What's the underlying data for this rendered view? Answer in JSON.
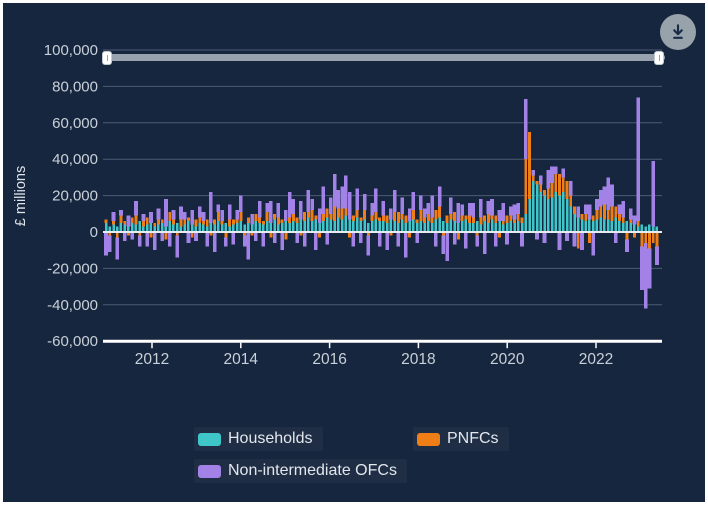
{
  "window": {
    "background": "#ffffff"
  },
  "panel": {
    "background": "#16263E"
  },
  "toolbar": {
    "download_button_color": "#98A2AB",
    "download_icon_color": "#1A2B47"
  },
  "range_slider": {
    "track_color": "#98A2AE",
    "handle_color": "#ffffff",
    "position": "full-range"
  },
  "y_axis": {
    "title": "£ millions",
    "tick_labels": [
      "100,000",
      "80,000",
      "60,000",
      "40,000",
      "20,000",
      "0",
      "-20,000",
      "-40,000",
      "-60,000"
    ],
    "tick_values": [
      100000,
      80000,
      60000,
      40000,
      20000,
      0,
      -20000,
      -40000,
      -60000
    ],
    "label_color": "#C9D0D9"
  },
  "x_axis": {
    "tick_labels": [
      "2012",
      "2014",
      "2016",
      "2018",
      "2020",
      "2022"
    ],
    "tick_years": [
      2012,
      2014,
      2016,
      2018,
      2020,
      2022
    ],
    "label_color": "#C9D0D9"
  },
  "legend": {
    "items": [
      {
        "label": "Households",
        "color": "#3EC6C9"
      },
      {
        "label": "PNFCs",
        "color": "#F07E16"
      },
      {
        "label": "Non-intermediate OFCs",
        "color": "#A382E8"
      }
    ]
  },
  "chart_data": {
    "type": "bar",
    "stacked": true,
    "frequency": "monthly",
    "x_range": [
      "2010-11",
      "2023-02"
    ],
    "ylabel": "£ millions",
    "ylim": [
      -60000,
      100000
    ],
    "grid": true,
    "legend_position": "bottom",
    "series": [
      {
        "name": "Households",
        "color": "#3EC6C9",
        "values": [
          5000,
          3000,
          4000,
          3000,
          5000,
          4000,
          3000,
          5000,
          4000,
          6000,
          3000,
          4000,
          5000,
          3000,
          4000,
          5000,
          3000,
          6000,
          4000,
          5000,
          3000,
          4000,
          6000,
          4000,
          3000,
          5000,
          4000,
          3000,
          5000,
          4000,
          6000,
          4000,
          5000,
          3000,
          4000,
          5000,
          6000,
          4000,
          5000,
          4000,
          6000,
          5000,
          4000,
          6000,
          5000,
          7000,
          4000,
          5000,
          6000,
          5000,
          6000,
          5000,
          7000,
          6000,
          8000,
          6000,
          7000,
          5000,
          6000,
          8000,
          7000,
          6000,
          8000,
          7000,
          9000,
          7000,
          6000,
          8000,
          6000,
          7000,
          5000,
          6000,
          7000,
          6000,
          6000,
          5000,
          7000,
          6000,
          5000,
          7000,
          5000,
          6000,
          7000,
          5000,
          6000,
          5000,
          6000,
          5000,
          7000,
          8000,
          6000,
          5000,
          7000,
          6000,
          5000,
          6000,
          7000,
          5000,
          5000,
          6000,
          4000,
          6000,
          5000,
          7000,
          5000,
          6000,
          4000,
          5000,
          6000,
          5000,
          6000,
          5000,
          10000,
          18000,
          28000,
          26000,
          22000,
          20000,
          18000,
          19000,
          22000,
          20000,
          22000,
          18000,
          14000,
          10000,
          8000,
          7000,
          6000,
          7000,
          6000,
          7000,
          8000,
          7000,
          7000,
          6000,
          8000,
          6000,
          5000,
          6000,
          5000,
          4000,
          3000,
          4000,
          3000,
          4000,
          3000,
          3000
        ]
      },
      {
        "name": "PNFCs",
        "color": "#F07E16",
        "values": [
          2000,
          -2000,
          2000,
          -3000,
          4000,
          2000,
          -2000,
          3000,
          5000,
          -2000,
          3000,
          4000,
          -3000,
          2000,
          3000,
          2000,
          -4000,
          5000,
          3000,
          -2000,
          4000,
          3000,
          2000,
          -3000,
          4000,
          3000,
          2000,
          4000,
          -2000,
          3000,
          5000,
          2000,
          -3000,
          4000,
          3000,
          2000,
          5000,
          -2000,
          3000,
          -2000,
          4000,
          3000,
          2000,
          5000,
          -3000,
          3000,
          4000,
          2000,
          -4000,
          3000,
          4000,
          3000,
          -2000,
          5000,
          3000,
          6000,
          2000,
          -3000,
          4000,
          5000,
          3000,
          8000,
          5000,
          6000,
          4000,
          -3000,
          3000,
          4000,
          2000,
          5000,
          -2000,
          3000,
          4000,
          2000,
          3000,
          4000,
          -2000,
          5000,
          6000,
          3000,
          4000,
          -3000,
          5000,
          2000,
          6000,
          3000,
          4000,
          3000,
          5000,
          6000,
          -2000,
          4000,
          3000,
          5000,
          -4000,
          3000,
          2000,
          4000,
          3000,
          -2000,
          4000,
          3000,
          5000,
          2000,
          4000,
          -3000,
          2000,
          4000,
          3000,
          2000,
          4000,
          3000,
          30000,
          37000,
          3000,
          2000,
          4000,
          3000,
          6000,
          8000,
          10000,
          12000,
          8000,
          10000,
          6000,
          4000,
          -9000,
          3000,
          4000,
          -6000,
          3000,
          5000,
          6000,
          8000,
          5000,
          8000,
          6000,
          4000,
          3000,
          -4000,
          2000,
          -3000,
          3000,
          -8000,
          -6000,
          -9000,
          -6000,
          -8000
        ]
      },
      {
        "name": "Non-intermediate OFCs",
        "color": "#A382E8",
        "values": [
          -13000,
          -9000,
          5000,
          -12000,
          3000,
          -5000,
          6000,
          -4000,
          8000,
          -6000,
          4000,
          -8000,
          6000,
          -10000,
          6000,
          -5000,
          15000,
          -8000,
          5000,
          -12000,
          7000,
          4000,
          -6000,
          8000,
          -5000,
          6000,
          5000,
          -8000,
          17000,
          -11000,
          4000,
          6000,
          -5000,
          8000,
          -7000,
          5000,
          9000,
          -6000,
          -15000,
          6000,
          -5000,
          9000,
          -8000,
          5000,
          12000,
          -6000,
          8000,
          -10000,
          6000,
          14000,
          8000,
          -6000,
          10000,
          -8000,
          12000,
          6000,
          -10000,
          8000,
          15000,
          -7000,
          9000,
          18000,
          10000,
          12000,
          18000,
          15000,
          -8000,
          12000,
          -6000,
          9000,
          -11000,
          7000,
          13000,
          -8000,
          8000,
          -10000,
          6000,
          12000,
          -8000,
          9000,
          -14000,
          7000,
          10000,
          -6000,
          8000,
          5000,
          6000,
          12000,
          -8000,
          11000,
          -10000,
          -16000,
          9000,
          -7000,
          11000,
          6000,
          -9000,
          7000,
          8000,
          -6000,
          10000,
          -12000,
          7000,
          9000,
          -8000,
          6000,
          10000,
          -7000,
          5000,
          8000,
          6000,
          -8000,
          33000,
          0,
          3000,
          -4000,
          5000,
          -6000,
          10000,
          9000,
          4000,
          -10000,
          5000,
          -5000,
          8000,
          -8000,
          6000,
          -10000,
          5000,
          8000,
          -13000,
          6000,
          9000,
          10000,
          18000,
          12000,
          -6000,
          5000,
          9000,
          -7000,
          6000,
          5000,
          68000,
          -24000,
          -36000,
          -22000,
          36000,
          -10000
        ]
      }
    ]
  }
}
